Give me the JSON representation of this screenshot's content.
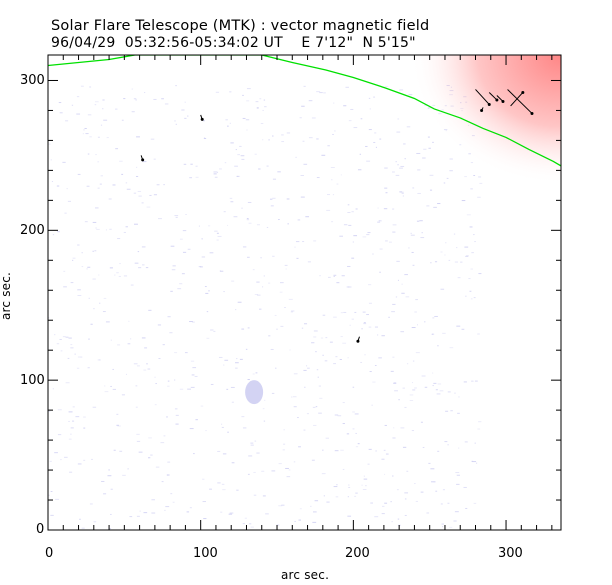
{
  "chart_data": {
    "type": "line",
    "title": "Solar Flare Telescope (MTK) : vector magnetic field",
    "subtitle": "96/04/29  05:32:56-05:34:02 UT    E 7'12\"  N 5'15\"",
    "xlabel": "arc sec.",
    "ylabel": "arc sec.",
    "xlim": [
      0,
      336
    ],
    "ylim": [
      0,
      317
    ],
    "xticks": [
      "0",
      "100",
      "200",
      "300"
    ],
    "yticks": [
      "0",
      "100",
      "200",
      "300"
    ],
    "xtick_values": [
      0,
      100,
      200,
      300
    ],
    "ytick_values": [
      0,
      100,
      200,
      300
    ],
    "grid": false,
    "series": [
      {
        "name": "solar limb",
        "color": "#00e000",
        "x": [
          0,
          20,
          40,
          57,
          140,
          160,
          182,
          200,
          221,
          240,
          253,
          270,
          285,
          300,
          315,
          331,
          336
        ],
        "y": [
          310,
          312,
          314,
          317,
          317,
          312,
          307,
          302,
          295,
          288,
          281,
          275,
          268,
          262,
          254,
          246,
          243
        ]
      }
    ],
    "vectors": [
      {
        "x": 61,
        "y": 250,
        "dx": 1,
        "dy": -3
      },
      {
        "x": 100,
        "y": 277,
        "dx": 1,
        "dy": -3
      },
      {
        "x": 204,
        "y": 129,
        "dx": -1,
        "dy": -3
      },
      {
        "x": 280,
        "y": 294,
        "dx": 9,
        "dy": -10
      },
      {
        "x": 289,
        "y": 292,
        "dx": 5,
        "dy": -5
      },
      {
        "x": 294,
        "y": 290,
        "dx": 4,
        "dy": -4
      },
      {
        "x": 301,
        "y": 294,
        "dx": 16,
        "dy": -16
      },
      {
        "x": 303,
        "y": 283,
        "dx": 8,
        "dy": 9
      },
      {
        "x": 285,
        "y": 282,
        "dx": -1,
        "dy": -2
      }
    ],
    "color_maps": {
      "positive": "#ff8080",
      "negative": "#c8c8f0"
    },
    "features": [
      {
        "name": "strong field region",
        "x": [
          250,
          336
        ],
        "y": [
          250,
          317
        ],
        "sign": "positive"
      },
      {
        "name": "weak spot",
        "x": [
          135
        ],
        "y": [
          92
        ],
        "sign": "negative"
      }
    ]
  }
}
